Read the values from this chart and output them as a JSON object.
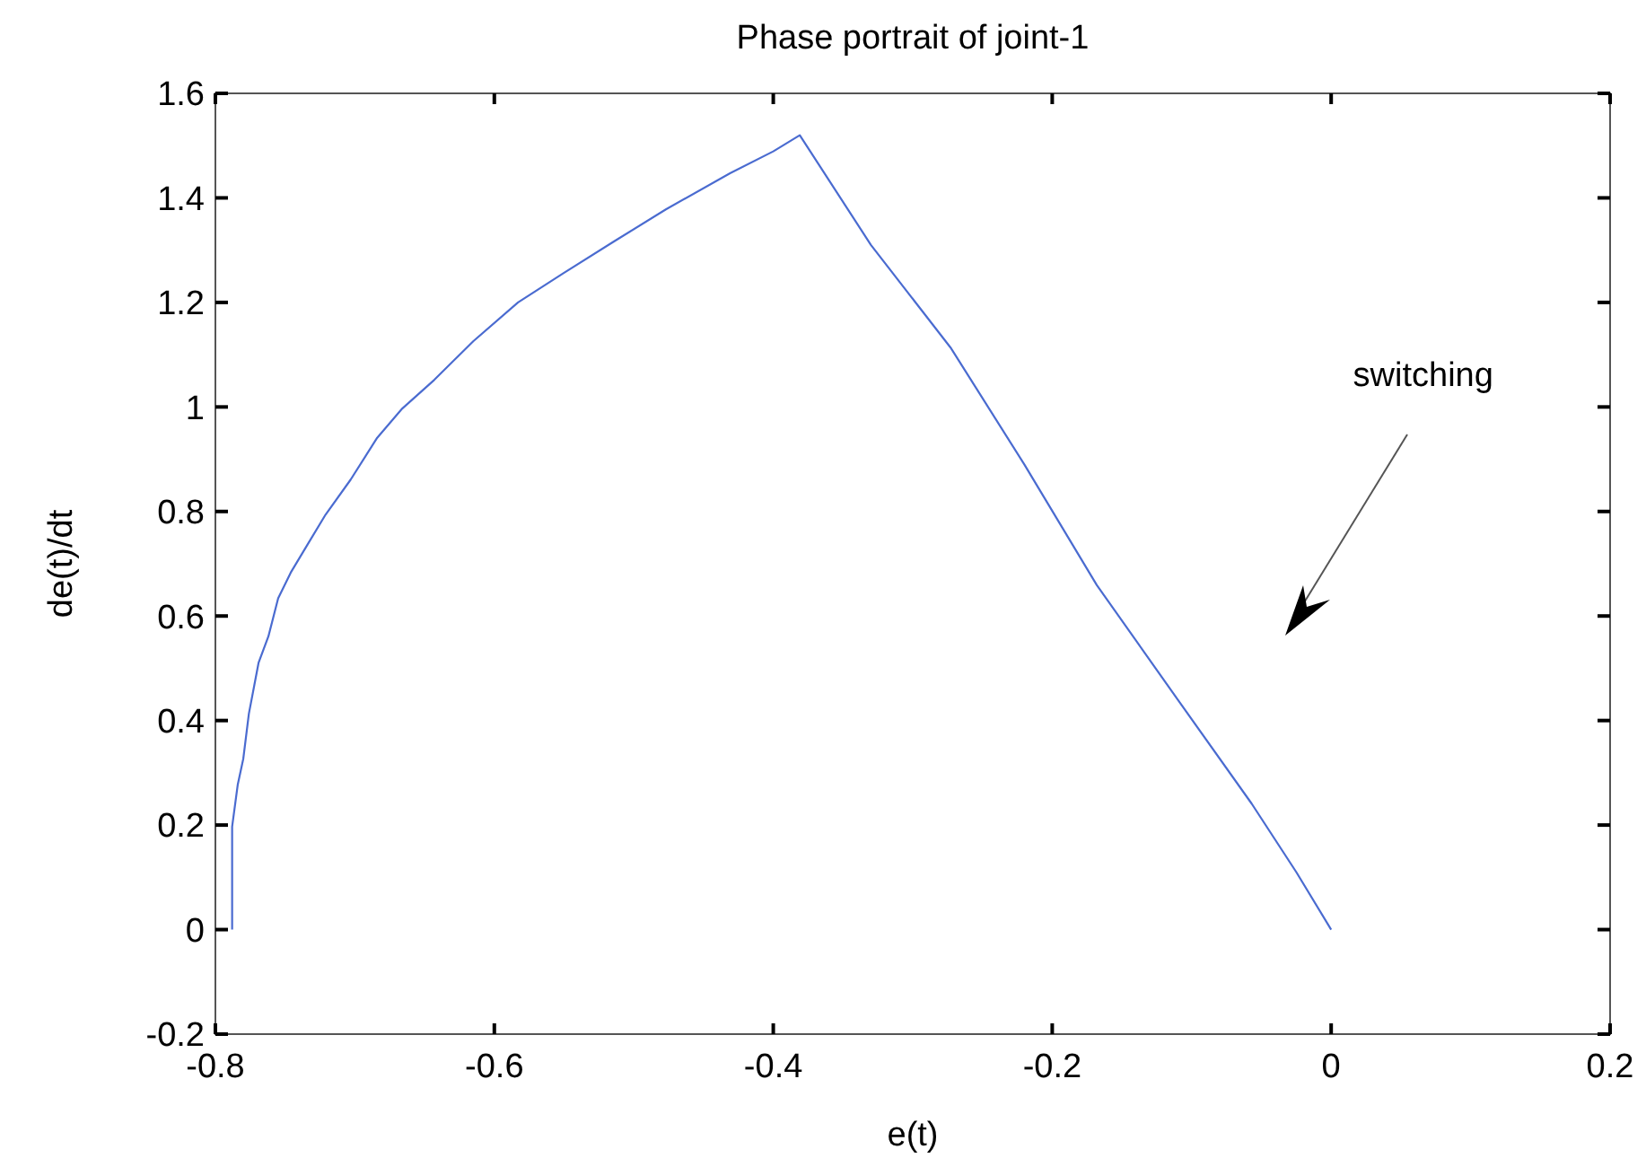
{
  "chart_data": {
    "type": "line",
    "title": "Phase portrait of joint-1",
    "xlabel": "e(t)",
    "ylabel": "de(t)/dt",
    "annotations": [
      "switching"
    ],
    "series": [
      {
        "color": "#4a6bd0",
        "x": [
          -0.788,
          -0.788,
          -0.784,
          -0.78,
          -0.776,
          -0.769,
          -0.762,
          -0.755,
          -0.746,
          -0.735,
          -0.721,
          -0.703,
          -0.684,
          -0.666,
          -0.643,
          -0.615,
          -0.583,
          -0.551,
          -0.514,
          -0.477,
          -0.431,
          -0.4,
          -0.381,
          -0.33,
          -0.273,
          -0.22,
          -0.168,
          -0.11,
          -0.057,
          -0.025,
          0
        ],
        "values": [
          0,
          0.197,
          0.277,
          0.327,
          0.413,
          0.511,
          0.561,
          0.634,
          0.683,
          0.732,
          0.794,
          0.861,
          0.941,
          0.997,
          1.052,
          1.126,
          1.2,
          1.255,
          1.317,
          1.378,
          1.447,
          1.489,
          1.52,
          1.31,
          1.114,
          0.89,
          0.659,
          0.44,
          0.241,
          0.11,
          0
        ]
      }
    ],
    "xlim": [
      -0.8,
      0.2
    ],
    "ylim": [
      -0.2,
      1.6
    ],
    "xticks": [
      -0.8,
      -0.6,
      -0.4,
      -0.2,
      0,
      0.2
    ],
    "yticks": [
      -0.2,
      0,
      0.2,
      0.4,
      0.6,
      0.8,
      1,
      1.2,
      1.4,
      1.6
    ],
    "grid": false,
    "marker": "none",
    "line_style": "solid"
  }
}
